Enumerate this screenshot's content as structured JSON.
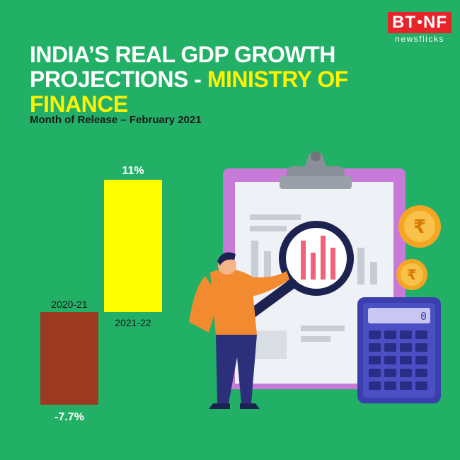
{
  "brand": {
    "logo_main": "BT",
    "logo_accent": "NF",
    "logo_sub": "newsflicks"
  },
  "header": {
    "title_line1": "INDIA’S REAL GDP GROWTH",
    "title_line2_white": "PROJECTIONS - ",
    "title_line2_highlight": "MINISTRY OF FINANCE",
    "subtitle": "Month of Release – February 2021"
  },
  "colors": {
    "background": "#22b067",
    "highlight": "#fff200",
    "bar_negative": "#9b3a20",
    "bar_positive": "#ffff00"
  },
  "chart_data": {
    "type": "bar",
    "categories": [
      "2020-21",
      "2021-22"
    ],
    "values": [
      -7.7,
      11
    ],
    "value_labels": [
      "-7.7%",
      "11%"
    ],
    "title": "INDIA’S REAL GDP GROWTH PROJECTIONS - MINISTRY OF FINANCE",
    "subtitle": "Month of Release – February 2021",
    "xlabel": "",
    "ylabel": "",
    "ylim": [
      -7.7,
      11
    ],
    "grid": false,
    "legend": "none"
  }
}
